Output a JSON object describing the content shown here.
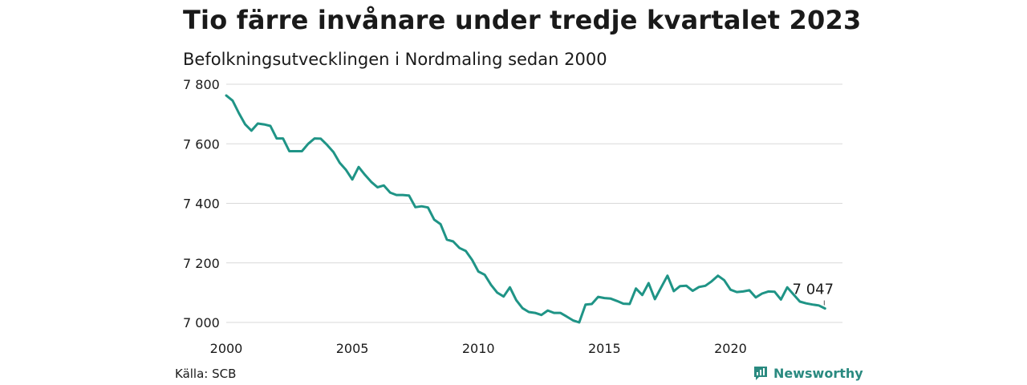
{
  "title": "Tio färre invånare under tredje kvartalet 2023",
  "subtitle": "Befolkningsutvecklingen i Nordmaling sedan 2000",
  "source": "Källa: SCB",
  "brand": "Newsworthy",
  "colors": {
    "line": "#1f9486",
    "grid": "#d9d9d9",
    "brand": "#2a8a80"
  },
  "chart_data": {
    "type": "line",
    "title": "Tio färre invånare under tredje kvartalet 2023",
    "subtitle": "Befolkningsutvecklingen i Nordmaling sedan 2000",
    "xlim": [
      2000,
      2024
    ],
    "ylim": [
      7000,
      7800
    ],
    "x_ticks": [
      2000,
      2005,
      2010,
      2015,
      2020
    ],
    "y_ticks": [
      7000,
      7200,
      7400,
      7600,
      7800
    ],
    "y_tick_labels": [
      "7 000",
      "7 200",
      "7 400",
      "7 600",
      "7 800"
    ],
    "annotation": {
      "x": 2023.75,
      "y": 7047,
      "label": "7 047"
    },
    "grid": "horizontal",
    "series": [
      {
        "x": [
          2000.0,
          2000.25,
          2000.5,
          2000.75,
          2001.0,
          2001.25,
          2001.5,
          2001.75,
          2002.0,
          2002.25,
          2002.5,
          2002.75,
          2003.0,
          2003.25,
          2003.5,
          2003.75,
          2004.0,
          2004.25,
          2004.5,
          2004.75,
          2005.0,
          2005.25,
          2005.5,
          2005.75,
          2006.0,
          2006.25,
          2006.5,
          2006.75,
          2007.0,
          2007.25,
          2007.5,
          2007.75,
          2008.0,
          2008.25,
          2008.5,
          2008.75,
          2009.0,
          2009.25,
          2009.5,
          2009.75,
          2010.0,
          2010.25,
          2010.5,
          2010.75,
          2011.0,
          2011.25,
          2011.5,
          2011.75,
          2012.0,
          2012.25,
          2012.5,
          2012.75,
          2013.0,
          2013.25,
          2013.5,
          2013.75,
          2014.0,
          2014.25,
          2014.5,
          2014.75,
          2015.0,
          2015.25,
          2015.5,
          2015.75,
          2016.0,
          2016.25,
          2016.5,
          2016.75,
          2017.0,
          2017.25,
          2017.5,
          2017.75,
          2018.0,
          2018.25,
          2018.5,
          2018.75,
          2019.0,
          2019.25,
          2019.5,
          2019.75,
          2020.0,
          2020.25,
          2020.5,
          2020.75,
          2021.0,
          2021.25,
          2021.5,
          2021.75,
          2022.0,
          2022.25,
          2022.5,
          2022.75,
          2023.0,
          2023.25,
          2023.5,
          2023.75
        ],
        "y": [
          7762,
          7745,
          7703,
          7665,
          7644,
          7668,
          7665,
          7660,
          7618,
          7618,
          7575,
          7575,
          7575,
          7600,
          7618,
          7617,
          7596,
          7572,
          7536,
          7512,
          7480,
          7522,
          7496,
          7472,
          7454,
          7460,
          7436,
          7428,
          7428,
          7426,
          7387,
          7390,
          7386,
          7345,
          7330,
          7278,
          7272,
          7250,
          7240,
          7210,
          7171,
          7160,
          7126,
          7100,
          7087,
          7118,
          7075,
          7048,
          7035,
          7032,
          7025,
          7040,
          7032,
          7032,
          7020,
          7007,
          7000,
          7060,
          7062,
          7086,
          7082,
          7080,
          7072,
          7063,
          7062,
          7114,
          7092,
          7132,
          7078,
          7118,
          7157,
          7105,
          7122,
          7123,
          7106,
          7119,
          7123,
          7138,
          7157,
          7142,
          7110,
          7102,
          7104,
          7108,
          7084,
          7097,
          7104,
          7103,
          7077,
          7118,
          7094,
          7070,
          7064,
          7060,
          7057,
          7047
        ]
      }
    ]
  }
}
